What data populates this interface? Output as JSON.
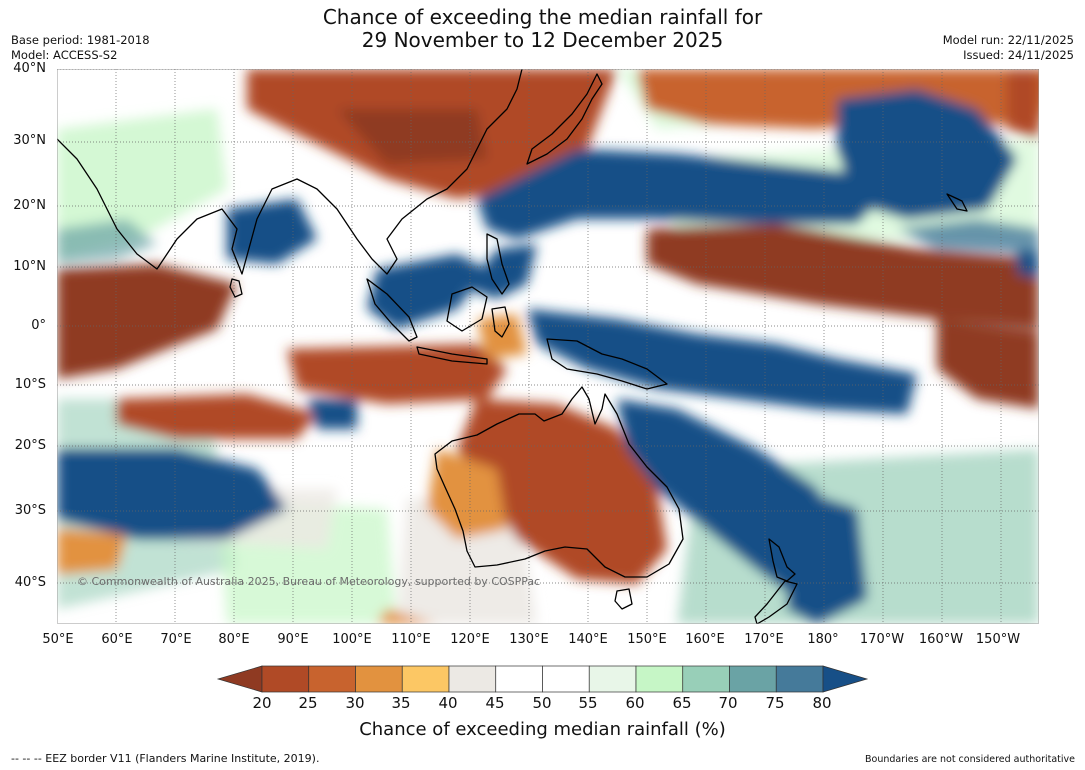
{
  "title": {
    "line1": "Chance of exceeding the median rainfall for",
    "line2": "29 November to 12 December 2025"
  },
  "meta": {
    "base_period": "Base period: 1981-2018",
    "model": "Model: ACCESS-S2",
    "model_run": "Model run: 22/11/2025",
    "issued": "Issued: 24/11/2025"
  },
  "map": {
    "copyright": "© Commonwealth of Australia 2025, Bureau of Meteorology, supported by COSPPac",
    "lat_labels": [
      "40°N",
      "30°N",
      "20°N",
      "10°N",
      "0°",
      "10°S",
      "20°S",
      "30°S",
      "40°S"
    ],
    "lon_labels": [
      "50°E",
      "60°E",
      "70°E",
      "80°E",
      "90°E",
      "100°E",
      "110°E",
      "120°E",
      "130°E",
      "140°E",
      "150°E",
      "160°E",
      "170°E",
      "180°",
      "170°W",
      "160°W",
      "150°W"
    ]
  },
  "colorbar": {
    "ticks": [
      "20",
      "25",
      "30",
      "35",
      "40",
      "45",
      "50",
      "55",
      "60",
      "65",
      "70",
      "75",
      "80"
    ],
    "colors": [
      "#8f3a22",
      "#b04a26",
      "#c8632e",
      "#e2923f",
      "#fcc764",
      "#ece9e4",
      "#ffffff",
      "#ffffff",
      "#e8f6e8",
      "#c6f6c6",
      "#98cfb8",
      "#6aa3a5",
      "#457a9a",
      "#174f87"
    ],
    "label": "Chance of exceeding median rainfall (%)"
  },
  "footer": {
    "eez": "--  --  -- EEZ border V11 (Flanders Marine Institute, 2019).",
    "disclaimer": "Boundaries are not considered authoritative"
  }
}
